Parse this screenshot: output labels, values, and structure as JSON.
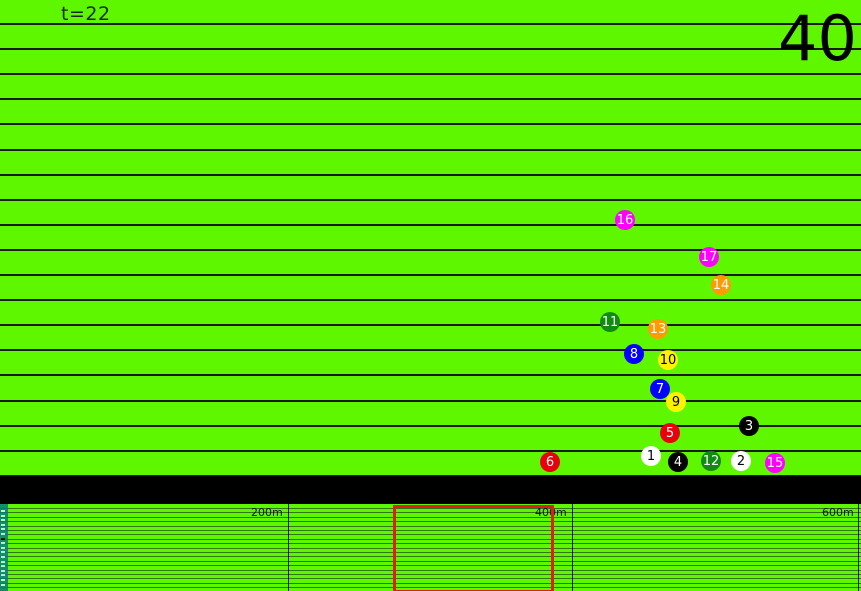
{
  "hud": {
    "time_text": "t=22",
    "distance_text": "40"
  },
  "runners": [
    {
      "label": "1",
      "color": "#FFFFFF",
      "text_color": "#000000",
      "lane": 18
    },
    {
      "label": "2",
      "color": "#FFFFFF",
      "text_color": "#000000",
      "lane": 18
    },
    {
      "label": "3",
      "color": "#000000",
      "text_color": "#FFFFFF",
      "lane": 16
    },
    {
      "label": "4",
      "color": "#000000",
      "text_color": "#FFFFFF",
      "lane": 18
    },
    {
      "label": "5",
      "color": "#E8000B",
      "text_color": "#FFFFFF",
      "lane": 17
    },
    {
      "label": "6",
      "color": "#E8000B",
      "text_color": "#FFFFFF",
      "lane": 18
    },
    {
      "label": "7",
      "color": "#0000FF",
      "text_color": "#FFFFFF",
      "lane": 15
    },
    {
      "label": "8",
      "color": "#0000FF",
      "text_color": "#FFFFFF",
      "lane": 13
    },
    {
      "label": "9",
      "color": "#FFF200",
      "text_color": "#000000",
      "lane": 15
    },
    {
      "label": "10",
      "color": "#FFF200",
      "text_color": "#000000",
      "lane": 14
    },
    {
      "label": "11",
      "color": "#138A13",
      "text_color": "#FFFFFF",
      "lane": 12
    },
    {
      "label": "12",
      "color": "#138A13",
      "text_color": "#FFFFFF",
      "lane": 18
    },
    {
      "label": "13",
      "color": "#FF9A00",
      "text_color": "#FFFFFF",
      "lane": 12
    },
    {
      "label": "14",
      "color": "#FF9A00",
      "text_color": "#FFFFFF",
      "lane": 10
    },
    {
      "label": "15",
      "color": "#FF00FF",
      "text_color": "#FFFFFF",
      "lane": 18
    },
    {
      "label": "16",
      "color": "#FF00FF",
      "text_color": "#FFFFFF",
      "lane": 8
    },
    {
      "label": "17",
      "color": "#FF00FF",
      "text_color": "#FFFFFF",
      "lane": 9
    }
  ],
  "minimap": {
    "marks": [
      "200m",
      "400m",
      "600m"
    ]
  },
  "colors": {
    "field": "#5EF700",
    "lane_line": "#1a1a1a",
    "viewport_frame": "#e41b1b"
  }
}
